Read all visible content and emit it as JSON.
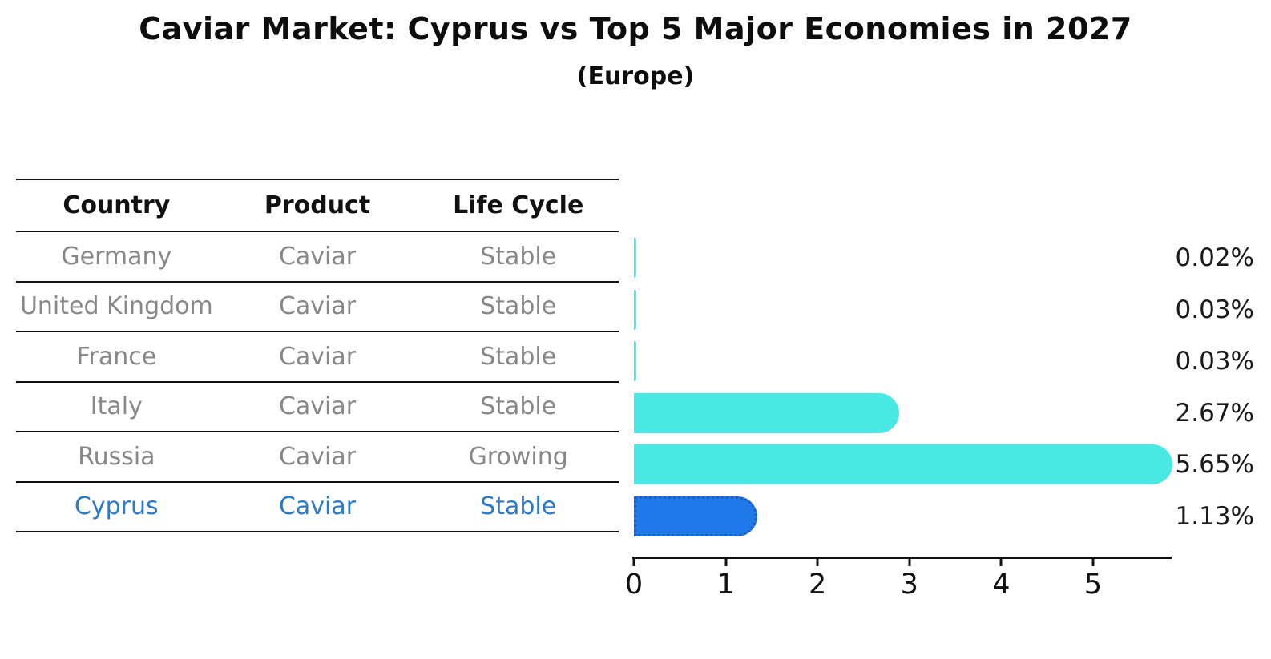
{
  "title": "Caviar Market: Cyprus vs Top 5 Major Economies in 2027",
  "subtitle": "(Europe)",
  "table": {
    "headers": [
      "Country",
      "Product",
      "Life Cycle"
    ],
    "rows": [
      {
        "country": "Germany",
        "product": "Caviar",
        "life_cycle": "Stable",
        "highlight": false
      },
      {
        "country": "United Kingdom",
        "product": "Caviar",
        "life_cycle": "Stable",
        "highlight": false
      },
      {
        "country": "France",
        "product": "Caviar",
        "life_cycle": "Stable",
        "highlight": false
      },
      {
        "country": "Italy",
        "product": "Caviar",
        "life_cycle": "Stable",
        "highlight": false
      },
      {
        "country": "Russia",
        "product": "Caviar",
        "life_cycle": "Growing",
        "highlight": false
      },
      {
        "country": "Cyprus",
        "product": "Caviar",
        "life_cycle": "Stable",
        "highlight": true
      }
    ]
  },
  "chart_data": {
    "type": "bar",
    "orientation": "horizontal",
    "title": "Caviar Market: Cyprus vs Top 5 Major Economies in 2027",
    "subtitle": "(Europe)",
    "categories": [
      "Germany",
      "United Kingdom",
      "France",
      "Italy",
      "Russia",
      "Cyprus"
    ],
    "values": [
      0.02,
      0.03,
      0.03,
      2.67,
      5.65,
      1.13
    ],
    "value_labels": [
      "0.02%",
      "0.03%",
      "0.03%",
      "2.67%",
      "5.65%",
      "1.13%"
    ],
    "xlabel": "",
    "ylabel": "",
    "xlim": [
      0,
      5.85
    ],
    "xticks": [
      0,
      1,
      2,
      3,
      4,
      5
    ],
    "grid": false,
    "legend": false,
    "highlight_index": 5,
    "colors": {
      "bar": "#4AE8E4",
      "highlight_bar": "#2079E8",
      "highlight_edge": "#1A5CC8",
      "highlight_text": "#2B7BC9",
      "table_text": "#888888",
      "header_text": "#111111",
      "axis": "#111111",
      "value_label_text": "#1a1a1a"
    }
  }
}
